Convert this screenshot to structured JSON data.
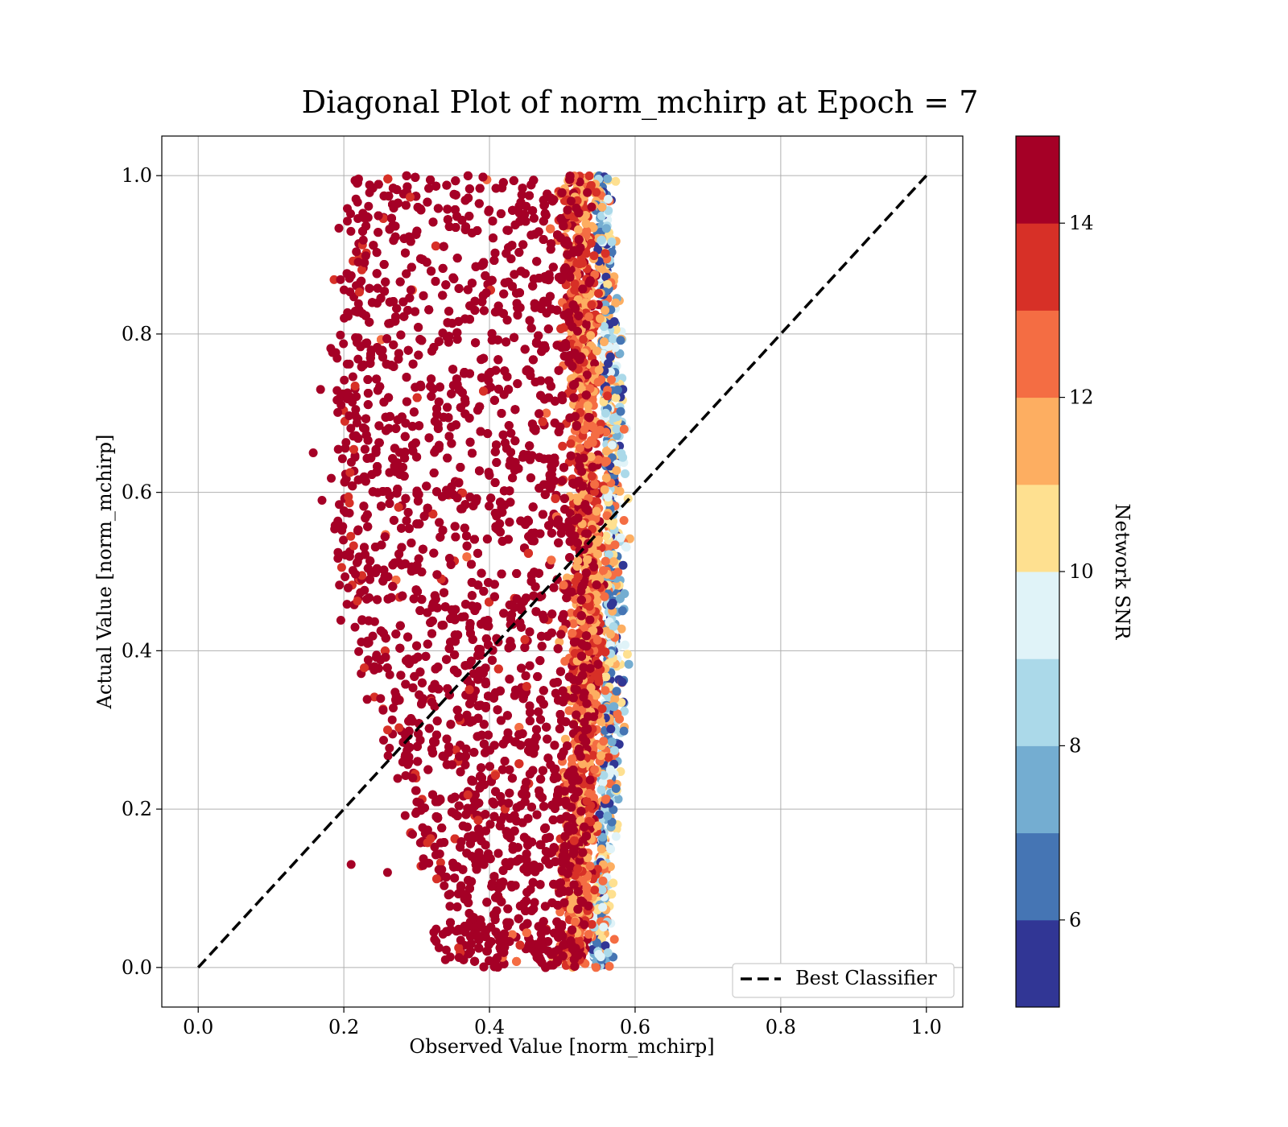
{
  "chart_data": {
    "type": "scatter",
    "title": "Diagonal Plot of norm_mchirp at Epoch = 7",
    "xlabel": "Observed Value [norm_mchirp]",
    "ylabel": "Actual Value [norm_mchirp]",
    "xlim": [
      -0.05,
      1.05
    ],
    "ylim": [
      -0.05,
      1.05
    ],
    "xticks": [
      "0.0",
      "0.2",
      "0.4",
      "0.6",
      "0.8",
      "1.0"
    ],
    "yticks": [
      "0.0",
      "0.2",
      "0.4",
      "0.6",
      "0.8",
      "1.0"
    ],
    "grid": true,
    "legend": {
      "position": "lower right",
      "entries": [
        {
          "label": "Best Classifier",
          "style": "dashed",
          "color": "#000000"
        }
      ]
    },
    "reference_line": {
      "name": "Best Classifier",
      "x": [
        0.0,
        1.0
      ],
      "y": [
        0.0,
        1.0
      ]
    },
    "colorbar": {
      "label": "Network SNR",
      "range": [
        5,
        15
      ],
      "ticks": [
        "6",
        "8",
        "10",
        "12",
        "14"
      ],
      "colors": [
        "#313695",
        "#4575b4",
        "#74add1",
        "#abd9e9",
        "#e0f3f8",
        "#fee090",
        "#fdae61",
        "#f46d43",
        "#d73027",
        "#a50026"
      ]
    },
    "series": [
      {
        "description_bins": "SNR-binned point groups; each group spans observed x range as a function of actual y",
        "groups": [
          {
            "snr": 15,
            "y_range": [
              0.01,
              1.0
            ],
            "x_at_y1": [
              0.24,
              0.49
            ],
            "x_at_y05": [
              0.22,
              0.52
            ],
            "x_at_y0": [
              0.37,
              0.53
            ]
          },
          {
            "snr": 13,
            "y_range": [
              0.0,
              1.0
            ],
            "x_edge": 0.535
          },
          {
            "snr": 12,
            "y_range": [
              0.0,
              1.0
            ],
            "x_edge": 0.54
          },
          {
            "snr": 11,
            "y_range": [
              0.0,
              1.0
            ],
            "x_edge": 0.545
          },
          {
            "snr": 10,
            "y_range": [
              0.0,
              1.0
            ],
            "x_edge": 0.55
          },
          {
            "snr": 9,
            "y_range": [
              0.0,
              1.0
            ],
            "x_edge": 0.555
          },
          {
            "snr": 8,
            "y_range": [
              0.0,
              1.0
            ],
            "x_edge": 0.56
          },
          {
            "snr": 7,
            "y_range": [
              0.0,
              1.0
            ],
            "x_edge": 0.565
          },
          {
            "snr": 6,
            "y_range": [
              0.0,
              1.0
            ],
            "x_edge": 0.57
          },
          {
            "snr": 5,
            "y_range": [
              0.0,
              1.0
            ],
            "x_edge": 0.575
          }
        ]
      }
    ]
  }
}
